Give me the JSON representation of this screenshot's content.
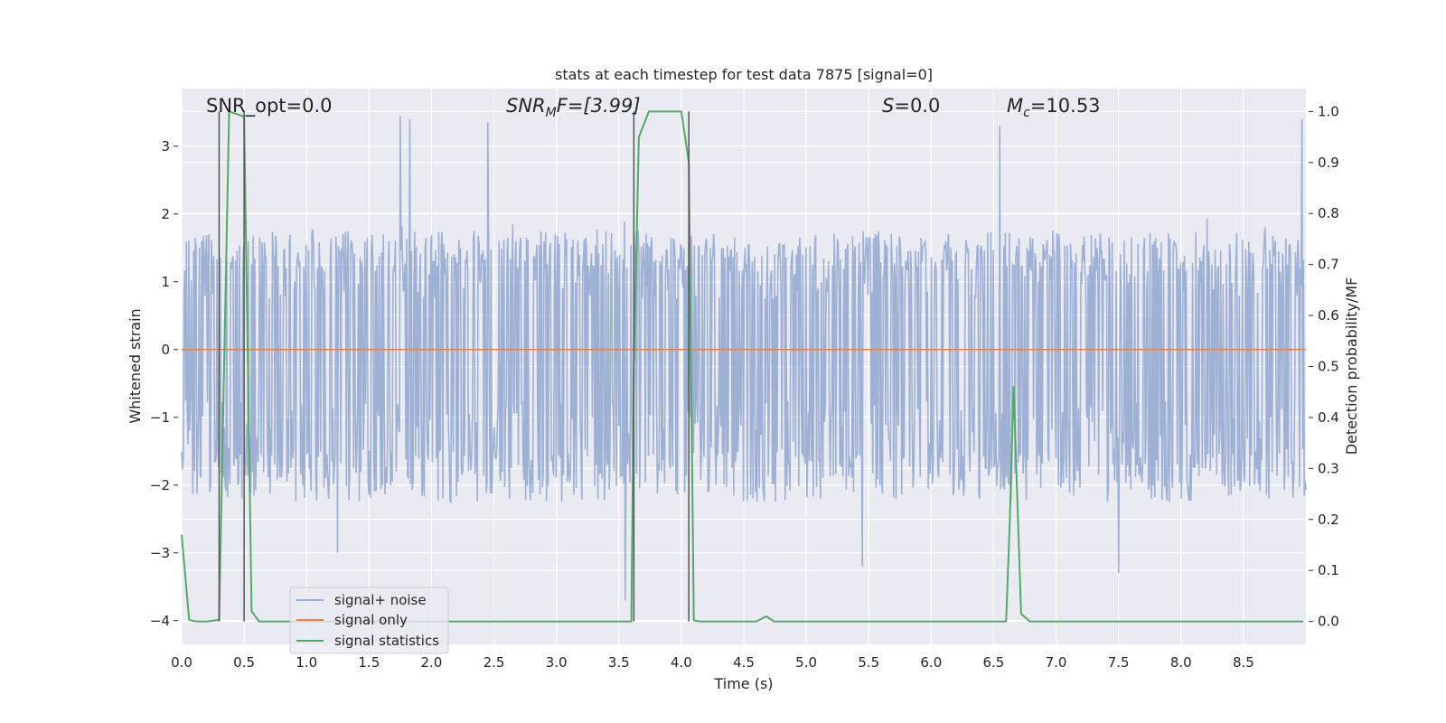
{
  "chart_data": {
    "type": "line",
    "title": "stats at each timestep for test data 7875 [signal=0]",
    "xlabel": "Time (s)",
    "ylabel": "Whitened strain",
    "y2label": "Detection probability/MF",
    "xlim": [
      0.0,
      9.0
    ],
    "ylim": [
      -4.35,
      3.85
    ],
    "y2lim": [
      -0.045,
      1.045
    ],
    "x_ticks": [
      "0.0",
      "0.5",
      "1.0",
      "1.5",
      "2.0",
      "2.5",
      "3.0",
      "3.5",
      "4.0",
      "4.5",
      "5.0",
      "5.5",
      "6.0",
      "6.5",
      "7.0",
      "7.5",
      "8.0",
      "8.5"
    ],
    "y_ticks": [
      "3",
      "2",
      "1",
      "0",
      "−1",
      "−2",
      "−3",
      "−4"
    ],
    "y2_ticks": [
      "1.0",
      "0.9",
      "0.8",
      "0.7",
      "0.6",
      "0.5",
      "0.4",
      "0.3",
      "0.2",
      "0.1",
      "0.0"
    ],
    "grid": true,
    "legend_position": "bottom-left",
    "annotations": {
      "snr_opt": "SNR_opt=0.0",
      "snr_mf_prefix": "SNR",
      "snr_mf_sub": "M",
      "snr_mf_suffix": "F=[3.99]",
      "s_prefix": "S",
      "s_suffix": "=0.0",
      "mc_prefix": "M",
      "mc_sub": "c",
      "mc_suffix": "=10.53"
    },
    "series": [
      {
        "name": "signal+ noise",
        "color": "#9aaed3",
        "axis": "left",
        "kind": "noise",
        "typical_range": [
          -1.8,
          1.4
        ],
        "extreme_range": [
          -3.7,
          3.4
        ],
        "peaks": [
          {
            "x": 1.75,
            "y": 3.45
          },
          {
            "x": 1.83,
            "y": 3.4
          },
          {
            "x": 2.45,
            "y": 3.35
          },
          {
            "x": 3.55,
            "y": -3.7
          },
          {
            "x": 6.55,
            "y": 3.3
          },
          {
            "x": 8.97,
            "y": 3.4
          },
          {
            "x": 7.5,
            "y": -3.3
          },
          {
            "x": 5.45,
            "y": -3.2
          },
          {
            "x": 1.25,
            "y": -3.0
          }
        ]
      },
      {
        "name": "signal only",
        "color": "#dd8452",
        "axis": "left",
        "x": [
          0.0,
          9.0
        ],
        "y": [
          0.0,
          0.0
        ]
      },
      {
        "name": "signal statistics",
        "color": "#55a868",
        "axis": "right",
        "x": [
          0.0,
          0.06,
          0.12,
          0.2,
          0.3,
          0.38,
          0.5,
          0.56,
          0.62,
          3.6,
          3.62,
          3.66,
          3.74,
          4.0,
          4.06,
          4.1,
          4.15,
          4.6,
          4.68,
          4.74,
          6.6,
          6.63,
          6.66,
          6.72,
          6.79,
          8.98
        ],
        "y": [
          0.17,
          0.003,
          0.0,
          0.0,
          0.003,
          1.0,
          0.99,
          0.02,
          0.0,
          0.0,
          0.5,
          0.95,
          1.0,
          1.0,
          0.9,
          0.002,
          0.0,
          0.0,
          0.01,
          0.0,
          0.0,
          0.2,
          0.46,
          0.015,
          0.0,
          0.0
        ]
      }
    ],
    "vertical_markers": [
      0.3,
      0.5,
      3.62,
      4.06
    ]
  }
}
